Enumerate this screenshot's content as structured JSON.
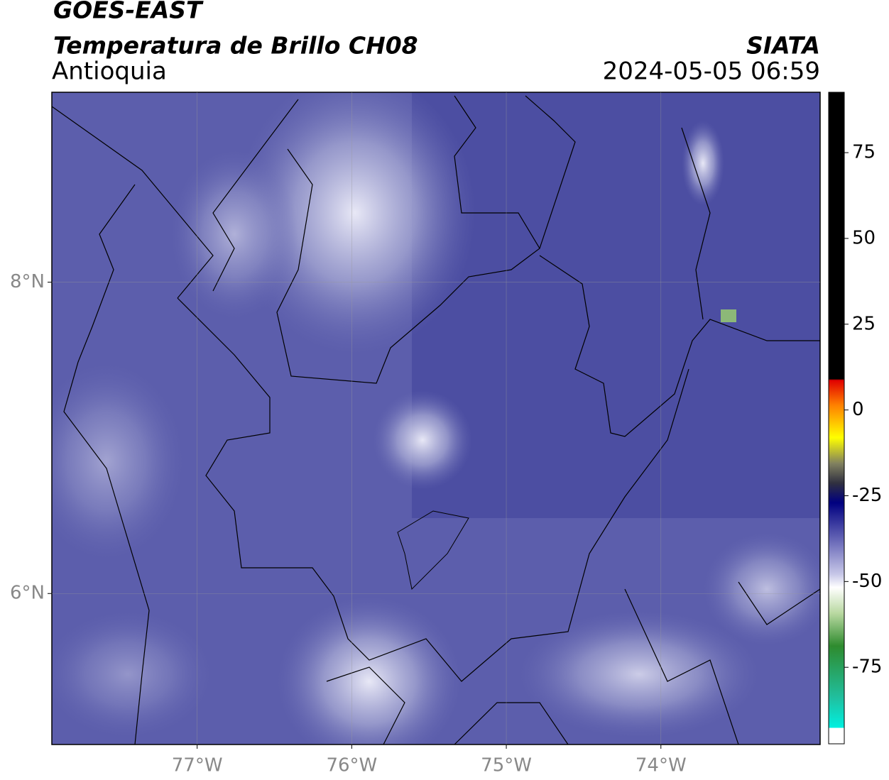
{
  "header": {
    "satellite": "GOES-EAST",
    "product": "Temperatura de Brillo CH08",
    "region": "Antioquia",
    "source": "SIATA",
    "datetime": "2024-05-05 06:59"
  },
  "map": {
    "xlim": [
      -77.94,
      -72.97
    ],
    "ylim": [
      5.03,
      9.22
    ],
    "xticks": [
      {
        "value": -77,
        "label": "77°W"
      },
      {
        "value": -76,
        "label": "76°W"
      },
      {
        "value": -75,
        "label": "75°W"
      },
      {
        "value": -74,
        "label": "74°W"
      }
    ],
    "yticks": [
      {
        "value": 6,
        "label": "6°N"
      },
      {
        "value": 8,
        "label": "8°N"
      }
    ],
    "grid": true
  },
  "colorbar": {
    "lim": [
      -97.3,
      92.6
    ],
    "ticks": [
      75,
      50,
      25,
      0,
      -25,
      -50,
      -75
    ]
  }
}
